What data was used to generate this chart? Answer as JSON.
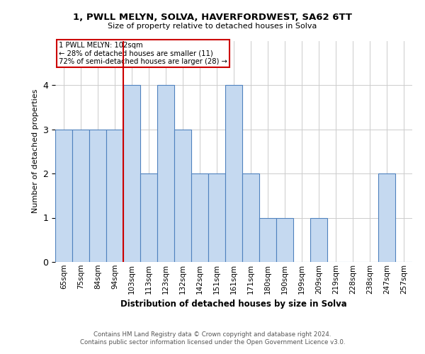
{
  "title": "1, PWLL MELYN, SOLVA, HAVERFORDWEST, SA62 6TT",
  "subtitle": "Size of property relative to detached houses in Solva",
  "xlabel": "Distribution of detached houses by size in Solva",
  "ylabel": "Number of detached properties",
  "categories": [
    "65sqm",
    "75sqm",
    "84sqm",
    "94sqm",
    "103sqm",
    "113sqm",
    "123sqm",
    "132sqm",
    "142sqm",
    "151sqm",
    "161sqm",
    "171sqm",
    "180sqm",
    "190sqm",
    "199sqm",
    "209sqm",
    "219sqm",
    "228sqm",
    "238sqm",
    "247sqm",
    "257sqm"
  ],
  "values": [
    3,
    3,
    3,
    3,
    4,
    2,
    4,
    3,
    2,
    2,
    4,
    2,
    1,
    1,
    0,
    1,
    0,
    0,
    0,
    2,
    0
  ],
  "bar_color": "#c5d9f0",
  "bar_edge_color": "#4f81bd",
  "highlight_index": 4,
  "highlight_line_color": "#cc0000",
  "annotation_lines": [
    "1 PWLL MELYN: 102sqm",
    "← 28% of detached houses are smaller (11)",
    "72% of semi-detached houses are larger (28) →"
  ],
  "annotation_box_color": "#cc0000",
  "ylim": [
    0,
    5
  ],
  "yticks": [
    0,
    1,
    2,
    3,
    4
  ],
  "background_color": "#ffffff",
  "footer_line1": "Contains HM Land Registry data © Crown copyright and database right 2024.",
  "footer_line2": "Contains public sector information licensed under the Open Government Licence v3.0."
}
